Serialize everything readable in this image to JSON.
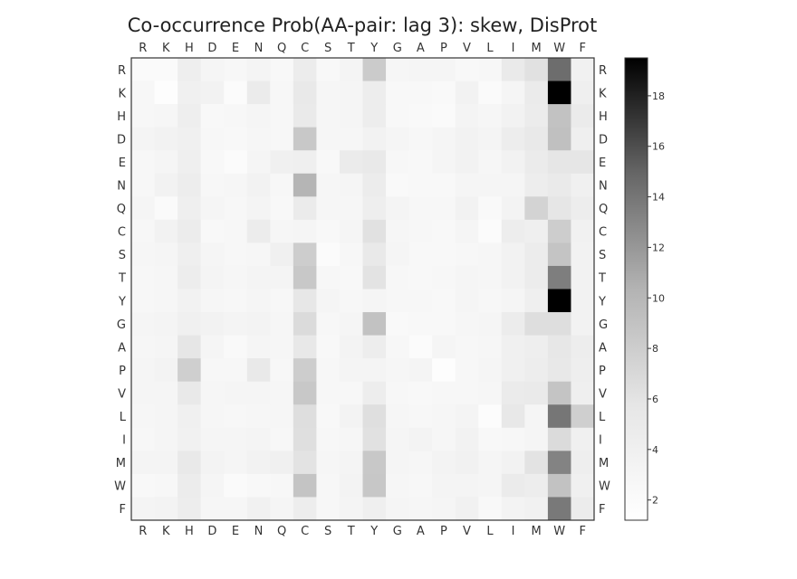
{
  "chart_data": {
    "type": "heatmap",
    "title": "Co-occurrence Prob(AA-pair: lag 3): skew, DisProt",
    "x_categories": [
      "R",
      "K",
      "H",
      "D",
      "E",
      "N",
      "Q",
      "C",
      "S",
      "T",
      "Y",
      "G",
      "A",
      "P",
      "V",
      "L",
      "I",
      "M",
      "W",
      "F"
    ],
    "y_categories": [
      "R",
      "K",
      "H",
      "D",
      "E",
      "N",
      "Q",
      "C",
      "S",
      "T",
      "Y",
      "G",
      "A",
      "P",
      "V",
      "L",
      "I",
      "M",
      "W",
      "F"
    ],
    "colormap": "Greys",
    "colorbar": {
      "ticks": [
        2,
        4,
        6,
        8,
        10,
        12,
        14,
        16,
        18
      ],
      "range": [
        1.2,
        19.5
      ]
    },
    "values": [
      [
        2.2,
        2.1,
        4.4,
        3.1,
        2.6,
        3.2,
        2.4,
        4.6,
        2.4,
        3.2,
        8.2,
        2.8,
        3.0,
        3.0,
        2.5,
        2.6,
        5.0,
        6.2,
        14.5,
        3.8
      ],
      [
        2.6,
        1.6,
        4.0,
        3.5,
        2.0,
        4.8,
        2.6,
        5.2,
        2.8,
        3.0,
        4.5,
        2.4,
        2.4,
        2.3,
        3.5,
        2.2,
        3.0,
        4.8,
        19.5,
        4.2
      ],
      [
        2.6,
        2.8,
        4.4,
        2.5,
        2.6,
        3.0,
        2.7,
        5.0,
        2.8,
        3.0,
        4.5,
        2.4,
        2.3,
        2.2,
        3.3,
        2.8,
        3.5,
        4.6,
        9.0,
        4.8
      ],
      [
        3.2,
        3.5,
        4.0,
        2.6,
        2.4,
        2.8,
        2.7,
        8.5,
        2.8,
        2.8,
        3.5,
        3.0,
        2.6,
        3.0,
        3.6,
        3.2,
        4.5,
        5.2,
        9.2,
        4.2
      ],
      [
        2.7,
        3.0,
        4.2,
        2.5,
        1.9,
        3.1,
        4.0,
        4.2,
        2.4,
        4.8,
        5.2,
        2.6,
        2.4,
        3.0,
        3.6,
        2.8,
        3.5,
        4.8,
        5.8,
        5.8
      ],
      [
        2.7,
        3.5,
        4.5,
        2.7,
        2.8,
        3.6,
        2.6,
        10.2,
        2.8,
        3.0,
        4.6,
        2.3,
        2.5,
        2.4,
        3.0,
        3.0,
        3.0,
        4.5,
        5.0,
        4.0
      ],
      [
        3.0,
        2.2,
        4.2,
        3.0,
        2.6,
        3.3,
        2.4,
        4.8,
        2.8,
        2.9,
        4.3,
        3.2,
        2.7,
        2.6,
        3.5,
        2.3,
        3.4,
        7.5,
        5.8,
        4.5
      ],
      [
        2.7,
        3.5,
        4.6,
        2.4,
        2.6,
        4.6,
        2.9,
        3.0,
        2.5,
        3.0,
        6.2,
        2.8,
        2.6,
        2.4,
        3.0,
        2.0,
        4.5,
        4.2,
        8.0,
        3.8
      ],
      [
        2.8,
        3.0,
        4.2,
        3.0,
        2.6,
        2.8,
        4.0,
        8.0,
        2.0,
        2.7,
        5.2,
        3.0,
        2.4,
        2.4,
        2.7,
        2.9,
        3.6,
        4.6,
        8.8,
        3.6
      ],
      [
        2.6,
        2.9,
        4.5,
        3.2,
        2.8,
        3.3,
        3.2,
        8.5,
        2.6,
        2.4,
        6.0,
        2.6,
        2.5,
        2.7,
        3.0,
        2.8,
        3.6,
        4.6,
        13.5,
        3.6
      ],
      [
        2.6,
        2.9,
        3.6,
        2.8,
        2.7,
        3.0,
        2.7,
        5.6,
        3.0,
        2.6,
        3.0,
        2.6,
        2.6,
        2.4,
        3.0,
        2.6,
        3.0,
        4.2,
        19.5,
        3.6
      ],
      [
        3.0,
        3.2,
        4.0,
        3.5,
        3.2,
        3.4,
        2.8,
        6.8,
        2.6,
        3.0,
        9.0,
        2.3,
        2.5,
        2.5,
        2.8,
        3.0,
        4.6,
        6.5,
        6.5,
        3.6
      ],
      [
        2.8,
        3.1,
        5.8,
        3.1,
        2.3,
        3.0,
        2.8,
        5.4,
        2.5,
        3.4,
        4.5,
        2.6,
        1.9,
        3.0,
        2.6,
        2.9,
        4.0,
        4.3,
        5.6,
        4.5
      ],
      [
        3.1,
        3.4,
        7.8,
        2.6,
        2.6,
        5.2,
        2.6,
        8.0,
        2.6,
        3.2,
        3.2,
        2.8,
        3.3,
        1.5,
        2.6,
        3.1,
        4.0,
        4.5,
        5.5,
        4.4
      ],
      [
        3.0,
        3.1,
        5.2,
        2.8,
        3.0,
        3.1,
        2.8,
        8.5,
        2.7,
        2.6,
        4.5,
        2.6,
        2.5,
        2.6,
        2.6,
        2.8,
        4.8,
        5.0,
        8.8,
        4.2
      ],
      [
        2.9,
        3.1,
        4.0,
        2.9,
        2.6,
        2.8,
        2.8,
        6.5,
        2.5,
        3.4,
        6.4,
        2.8,
        2.6,
        2.8,
        3.2,
        1.8,
        5.4,
        3.0,
        14.0,
        7.8
      ],
      [
        2.7,
        3.0,
        3.7,
        3.0,
        3.0,
        3.3,
        2.7,
        6.4,
        2.6,
        2.8,
        6.2,
        3.0,
        3.4,
        2.8,
        3.6,
        2.4,
        2.6,
        3.0,
        6.8,
        4.0
      ],
      [
        3.2,
        3.3,
        5.2,
        3.4,
        3.0,
        3.5,
        4.0,
        6.0,
        2.8,
        3.3,
        8.5,
        3.0,
        2.8,
        3.4,
        3.7,
        3.0,
        3.6,
        6.0,
        13.2,
        4.4
      ],
      [
        2.5,
        2.6,
        4.6,
        3.0,
        2.2,
        2.4,
        2.6,
        8.8,
        2.6,
        3.4,
        8.6,
        2.8,
        2.6,
        3.2,
        3.3,
        3.1,
        4.8,
        4.5,
        9.0,
        3.9
      ],
      [
        3.2,
        3.4,
        4.5,
        2.9,
        2.8,
        3.8,
        3.0,
        4.5,
        2.6,
        3.3,
        4.2,
        3.0,
        2.8,
        3.0,
        3.7,
        2.4,
        3.4,
        3.8,
        13.8,
        4.6
      ]
    ]
  }
}
